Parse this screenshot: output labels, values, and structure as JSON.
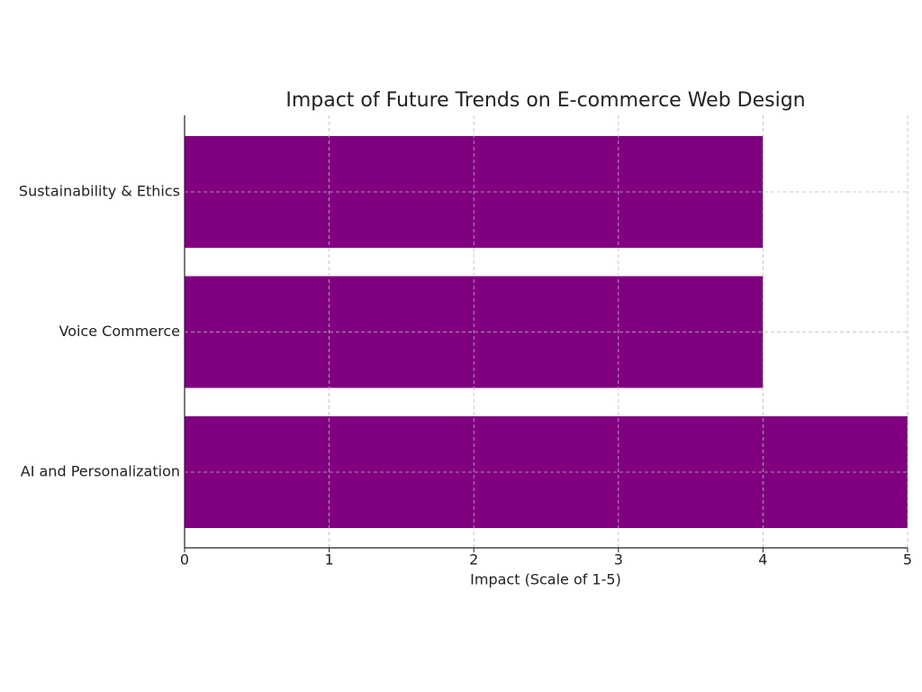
{
  "chart_data": {
    "type": "barh",
    "title": "Impact of Future Trends on E-commerce Web Design",
    "categories": [
      "AI and Personalization",
      "Voice Commerce",
      "Sustainability & Ethics"
    ],
    "values": [
      5,
      4,
      4
    ],
    "color": "#800080",
    "xlabel": "Impact (Scale of 1-5)",
    "xlim": [
      0,
      5
    ],
    "xticks": [
      0,
      1,
      2,
      3,
      4,
      5
    ],
    "grid": true
  }
}
